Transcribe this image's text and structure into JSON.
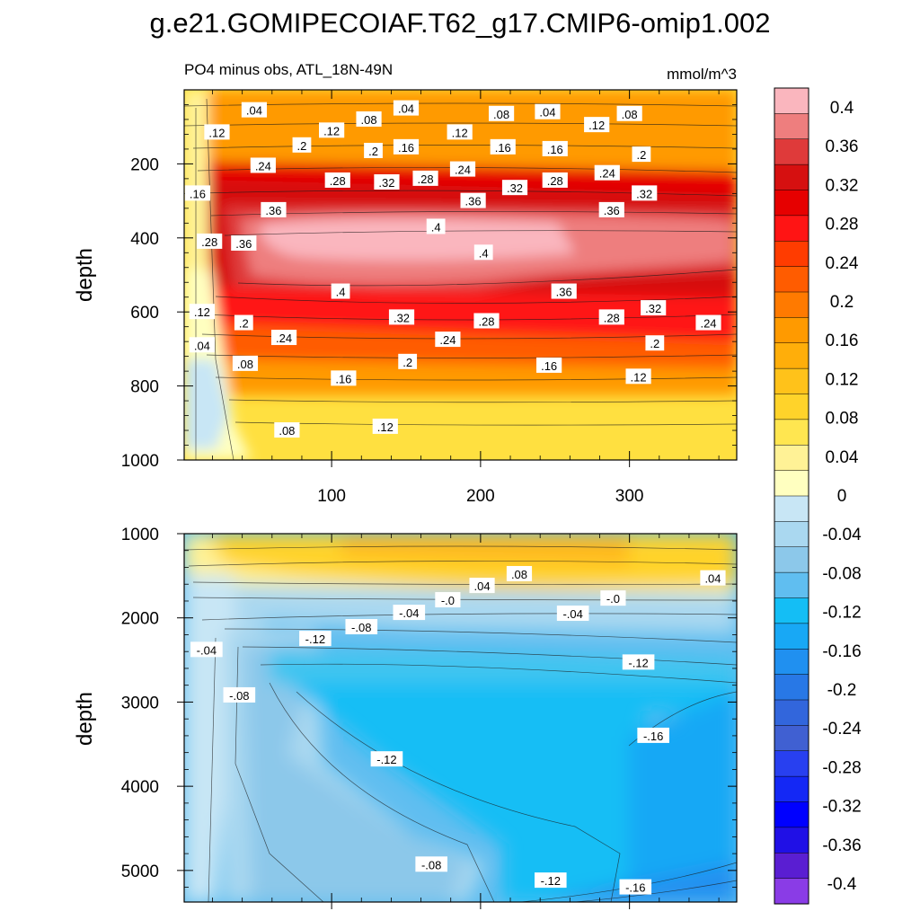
{
  "figure": {
    "title": "g.e21.GOMIPECOIAF.T62_g17.CMIP6-omip1.002",
    "left_string": "PO4 minus obs, ATL_18N-49N",
    "right_string": "mmol/m^3"
  },
  "chart_data": [
    {
      "type": "heatmap",
      "panel": "top",
      "ylabel": "depth",
      "xlim": [
        1,
        372
      ],
      "ylim": [
        0,
        1000
      ],
      "y_reversed": true,
      "x_ticks": [
        100,
        200,
        300
      ],
      "x_tick_labels": [
        "100",
        "200",
        "300"
      ],
      "y_ticks": [
        200,
        400,
        600,
        800,
        1000
      ],
      "y_tick_labels": [
        "200",
        "400",
        "600",
        "800",
        "1000"
      ],
      "contour_labels": [
        {
          "text": ".04",
          "x": 48,
          "y": 55
        },
        {
          "text": ".12",
          "x": 23,
          "y": 115
        },
        {
          "text": ".08",
          "x": 125,
          "y": 80
        },
        {
          "text": ".04",
          "x": 150,
          "y": 50
        },
        {
          "text": ".12",
          "x": 100,
          "y": 110
        },
        {
          "text": ".2",
          "x": 80,
          "y": 150
        },
        {
          "text": ".2",
          "x": 128,
          "y": 165
        },
        {
          "text": ".16",
          "x": 150,
          "y": 155
        },
        {
          "text": ".12",
          "x": 186,
          "y": 115
        },
        {
          "text": ".08",
          "x": 214,
          "y": 65
        },
        {
          "text": ".04",
          "x": 245,
          "y": 60
        },
        {
          "text": ".12",
          "x": 278,
          "y": 95
        },
        {
          "text": ".08",
          "x": 300,
          "y": 65
        },
        {
          "text": ".16",
          "x": 215,
          "y": 155
        },
        {
          "text": ".16",
          "x": 250,
          "y": 160
        },
        {
          "text": ".2",
          "x": 308,
          "y": 175
        },
        {
          "text": ".24",
          "x": 54,
          "y": 205
        },
        {
          "text": ".28",
          "x": 104,
          "y": 245
        },
        {
          "text": ".32",
          "x": 137,
          "y": 250
        },
        {
          "text": ".28",
          "x": 163,
          "y": 240
        },
        {
          "text": ".24",
          "x": 188,
          "y": 215
        },
        {
          "text": ".36",
          "x": 195,
          "y": 300
        },
        {
          "text": ".32",
          "x": 223,
          "y": 265
        },
        {
          "text": ".28",
          "x": 250,
          "y": 245
        },
        {
          "text": ".24",
          "x": 285,
          "y": 225
        },
        {
          "text": ".32",
          "x": 310,
          "y": 280
        },
        {
          "text": ".36",
          "x": 288,
          "y": 325
        },
        {
          "text": ".16",
          "x": 10,
          "y": 280
        },
        {
          "text": ".36",
          "x": 61,
          "y": 325
        },
        {
          "text": ".28",
          "x": 18,
          "y": 410
        },
        {
          "text": ".36",
          "x": 41,
          "y": 415
        },
        {
          "text": ".4",
          "x": 170,
          "y": 370
        },
        {
          "text": ".4",
          "x": 202,
          "y": 440
        },
        {
          "text": ".4",
          "x": 106,
          "y": 545
        },
        {
          "text": ".36",
          "x": 256,
          "y": 545
        },
        {
          "text": ".32",
          "x": 316,
          "y": 590
        },
        {
          "text": ".12",
          "x": 13,
          "y": 600
        },
        {
          "text": ".2",
          "x": 41,
          "y": 630
        },
        {
          "text": ".32",
          "x": 147,
          "y": 615
        },
        {
          "text": ".28",
          "x": 204,
          "y": 625
        },
        {
          "text": ".28",
          "x": 288,
          "y": 615
        },
        {
          "text": ".24",
          "x": 353,
          "y": 630
        },
        {
          "text": ".24",
          "x": 68,
          "y": 670
        },
        {
          "text": ".04",
          "x": 13,
          "y": 690
        },
        {
          "text": ".24",
          "x": 178,
          "y": 675
        },
        {
          "text": ".2",
          "x": 317,
          "y": 685
        },
        {
          "text": ".08",
          "x": 42,
          "y": 740
        },
        {
          "text": ".2",
          "x": 151,
          "y": 735
        },
        {
          "text": ".16",
          "x": 246,
          "y": 745
        },
        {
          "text": ".16",
          "x": 108,
          "y": 780
        },
        {
          "text": ".12",
          "x": 306,
          "y": 775
        },
        {
          "text": ".08",
          "x": 70,
          "y": 920
        },
        {
          "text": ".12",
          "x": 136,
          "y": 910
        }
      ]
    },
    {
      "type": "heatmap",
      "panel": "bottom",
      "ylabel": "depth",
      "xlim": [
        1,
        372
      ],
      "ylim": [
        1000,
        5375
      ],
      "y_reversed": true,
      "x_ticks": [
        100,
        200,
        300
      ],
      "y_ticks": [
        1000,
        2000,
        3000,
        4000,
        5000
      ],
      "y_tick_labels": [
        "1000",
        "2000",
        "3000",
        "4000",
        "5000"
      ],
      "contour_labels": [
        {
          "text": ".08",
          "x": 226,
          "y": 1480
        },
        {
          "text": ".04",
          "x": 201,
          "y": 1620
        },
        {
          "text": ".04",
          "x": 356,
          "y": 1530
        },
        {
          "text": "-.0",
          "x": 178,
          "y": 1790
        },
        {
          "text": "-.0",
          "x": 289,
          "y": 1770
        },
        {
          "text": "-.04",
          "x": 152,
          "y": 1940
        },
        {
          "text": "-.04",
          "x": 262,
          "y": 1950
        },
        {
          "text": "-.08",
          "x": 120,
          "y": 2110
        },
        {
          "text": "-.12",
          "x": 89,
          "y": 2250
        },
        {
          "text": "-.12",
          "x": 306,
          "y": 2530
        },
        {
          "text": "-.04",
          "x": 16,
          "y": 2380
        },
        {
          "text": "-.08",
          "x": 38,
          "y": 2920
        },
        {
          "text": "-.16",
          "x": 316,
          "y": 3400
        },
        {
          "text": "-.12",
          "x": 137,
          "y": 3680
        },
        {
          "text": "-.08",
          "x": 167,
          "y": 4930
        },
        {
          "text": "-.12",
          "x": 247,
          "y": 5120
        },
        {
          "text": "-.16",
          "x": 304,
          "y": 5200
        }
      ]
    }
  ],
  "colorbar": {
    "labels": [
      "0.4",
      "0.36",
      "0.32",
      "0.28",
      "0.24",
      "0.2",
      "0.16",
      "0.12",
      "0.08",
      "0.04",
      "0",
      "-0.04",
      "-0.08",
      "-0.12",
      "-0.16",
      "-0.2",
      "-0.24",
      "-0.28",
      "-0.32",
      "-0.36",
      "-0.4"
    ],
    "colors": [
      "#FAB6BE",
      "#EE7E7E",
      "#DF3A3A",
      "#D61010",
      "#E60000",
      "#FF1414",
      "#FF3C00",
      "#FF5C00",
      "#FF7A00",
      "#FF9A00",
      "#FFAE0A",
      "#FFC21A",
      "#FFD32A",
      "#FFE650",
      "#FFF296",
      "#FFFFC0",
      "#C8E6F5",
      "#AAD8F0",
      "#8CC8EA",
      "#60BEF0",
      "#14BEF5",
      "#18A8F5",
      "#2090F0",
      "#2878E6",
      "#3266DC",
      "#4060D2",
      "#2840F0",
      "#1428F5",
      "#0000FF",
      "#2010E6",
      "#5A1ED2",
      "#8A3CE6"
    ]
  }
}
